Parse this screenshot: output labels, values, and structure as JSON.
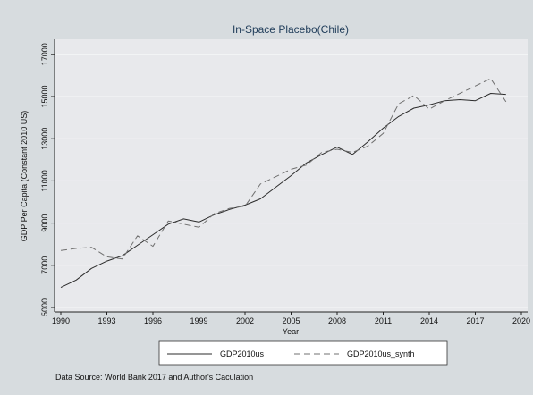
{
  "chart_data": {
    "type": "line",
    "title": "In-Space Placebo(Chile)",
    "xlabel": "Year",
    "ylabel": "GDP Per Capita (Constant 2010 US)",
    "xlim": [
      1990,
      2020
    ],
    "ylim": [
      5000,
      17500
    ],
    "x_ticks": [
      1990,
      1993,
      1996,
      1999,
      2002,
      2005,
      2008,
      2011,
      2014,
      2017,
      2020
    ],
    "y_ticks": [
      5000,
      7000,
      9000,
      11000,
      13000,
      15000,
      17000
    ],
    "grid": true,
    "legend_position": "bottom",
    "x": [
      1990,
      1991,
      1992,
      1993,
      1994,
      1995,
      1996,
      1997,
      1998,
      1999,
      2000,
      2001,
      2002,
      2003,
      2004,
      2005,
      2006,
      2007,
      2008,
      2009,
      2010,
      2011,
      2012,
      2013,
      2014,
      2015,
      2016,
      2017,
      2018,
      2019
    ],
    "series": [
      {
        "name": "GDP2010us",
        "style": "solid",
        "color": "#2b2b2b",
        "values": [
          5950,
          6300,
          6850,
          7200,
          7450,
          7950,
          8450,
          8950,
          9200,
          9050,
          9400,
          9650,
          9850,
          10150,
          10700,
          11250,
          11850,
          12250,
          12600,
          12250,
          12850,
          13500,
          14050,
          14450,
          14600,
          14800,
          14850,
          14800,
          15150,
          15100
        ]
      },
      {
        "name": "GDP2010us_synth",
        "style": "dashed",
        "color": "#707070",
        "values": [
          7700,
          7800,
          7850,
          7400,
          7300,
          8400,
          7900,
          9100,
          8950,
          8800,
          9450,
          9700,
          9800,
          10850,
          11200,
          11550,
          11750,
          12350,
          12500,
          12350,
          12650,
          13250,
          14650,
          15050,
          14400,
          14800,
          15150,
          15500,
          15850,
          14750
        ]
      }
    ],
    "source_note": "Data Source: World Bank 2017 and Author's Caculation"
  },
  "colors": {
    "outer_background": "#d7dcdf",
    "plot_background": "#e8e9ec",
    "grid": "#f6f7f8",
    "title": "#1f3c59"
  }
}
